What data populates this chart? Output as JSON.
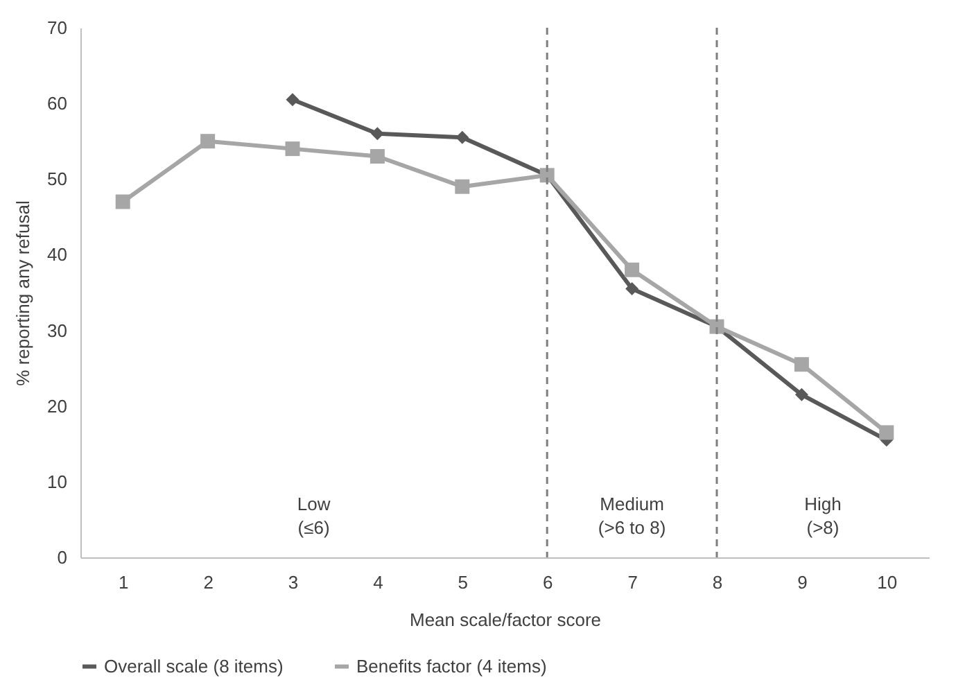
{
  "chart_data": {
    "type": "line",
    "xlabel": "Mean scale/factor score",
    "ylabel": "% reporting any refusal",
    "x": [
      1,
      2,
      3,
      4,
      5,
      6,
      7,
      8,
      9,
      10
    ],
    "series": [
      {
        "name": "Overall scale (8 items)",
        "color": "#595959",
        "marker": "diamond",
        "values": [
          null,
          null,
          60.5,
          56,
          55.5,
          50.5,
          35.5,
          30.5,
          21.5,
          15.5
        ]
      },
      {
        "name": "Benefits factor (4 items)",
        "color": "#a6a6a6",
        "marker": "square",
        "values": [
          47,
          55,
          54,
          53,
          49,
          50.5,
          38,
          30.5,
          25.5,
          16.5
        ]
      }
    ],
    "xlim": [
      0.5,
      10.5
    ],
    "xticks": [
      1,
      2,
      3,
      4,
      5,
      6,
      7,
      8,
      9,
      10
    ],
    "ylim": [
      0,
      70
    ],
    "yticks": [
      0,
      10,
      20,
      30,
      40,
      50,
      60,
      70
    ],
    "ref_lines": [
      {
        "axis": "x",
        "value": 6,
        "color": "#7f7f7f",
        "line_style": "dashed"
      },
      {
        "axis": "x",
        "value": 8,
        "color": "#7f7f7f",
        "line_style": "dashed"
      }
    ],
    "annotations": [
      "Low\n(≤6)",
      "Medium\n(>6 to 8)",
      "High\n(>8)"
    ],
    "grid": false,
    "legend": "bottom",
    "line_style": "solid"
  }
}
